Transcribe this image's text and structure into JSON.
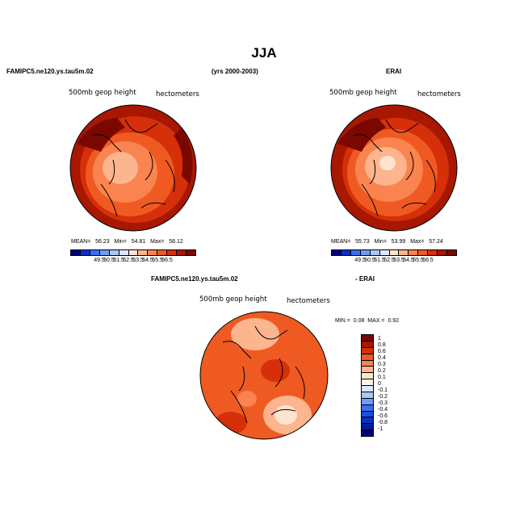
{
  "page": {
    "title": "JJA",
    "panel_a_header": "FAMIPC5.ne120.ys.tau5m.02",
    "years_header": "(yrs 2000-2003)",
    "panel_b_header": "ERAI",
    "diff_header_left": "FAMIPC5.ne120.ys.tau5m.02",
    "diff_header_right": "- ERAI"
  },
  "chart_data": [
    {
      "type": "heatmap",
      "name": "panel-model",
      "variable_label": "500mb geop height",
      "units_label": "hectometers",
      "stats": {
        "mean_label": "MEAN=",
        "mean": "56.23",
        "min_label": "Min=",
        "min": "54.81",
        "max_label": "Max=",
        "max": "58.12"
      },
      "levels": [
        "49.5",
        "50.5",
        "51.5",
        "52.5",
        "53.5",
        "54.5",
        "55.5",
        "56.5"
      ],
      "colors": [
        "#00007f",
        "#0a2fc7",
        "#3a6ff0",
        "#6e9cf6",
        "#a9c6fa",
        "#dce8fd",
        "#fde3d0",
        "#fcb58e",
        "#f9844f",
        "#ef5a23",
        "#d5300a",
        "#a81700",
        "#7a0800"
      ]
    },
    {
      "type": "heatmap",
      "name": "panel-erai",
      "variable_label": "500mb geop height",
      "units_label": "hectometers",
      "stats": {
        "mean_label": "MEAN=",
        "mean": "55.73",
        "min_label": "Min=",
        "min": "53.99",
        "max_label": "Max=",
        "max": "57.24"
      },
      "levels": [
        "49.5",
        "50.5",
        "51.5",
        "52.5",
        "53.5",
        "54.5",
        "55.5",
        "56.5"
      ],
      "colors": [
        "#00007f",
        "#0a2fc7",
        "#3a6ff0",
        "#6e9cf6",
        "#a9c6fa",
        "#dce8fd",
        "#fde3d0",
        "#fcb58e",
        "#f9844f",
        "#ef5a23",
        "#d5300a",
        "#a81700",
        "#7a0800"
      ]
    },
    {
      "type": "heatmap",
      "name": "panel-difference",
      "variable_label": "500mb geop height",
      "units_label": "hectometers",
      "stats": {
        "min_label": "MIN =",
        "min": "0.08",
        "max_label": "MAX =",
        "max": "0.92"
      },
      "levels": [
        "1",
        "0.8",
        "0.6",
        "0.4",
        "0.3",
        "0.2",
        "0.1",
        "0",
        "-0.1",
        "-0.2",
        "-0.3",
        "-0.4",
        "-0.6",
        "-0.8",
        "-1"
      ],
      "colors": [
        "#7a0800",
        "#a81700",
        "#d5300a",
        "#ef5a23",
        "#f9844f",
        "#fcb58e",
        "#fde3d0",
        "#fff3ea",
        "#dce8fd",
        "#a9c6fa",
        "#6e9cf6",
        "#3a6ff0",
        "#1e4fe0",
        "#0a2fc7",
        "#001c9a",
        "#00007f"
      ]
    }
  ]
}
